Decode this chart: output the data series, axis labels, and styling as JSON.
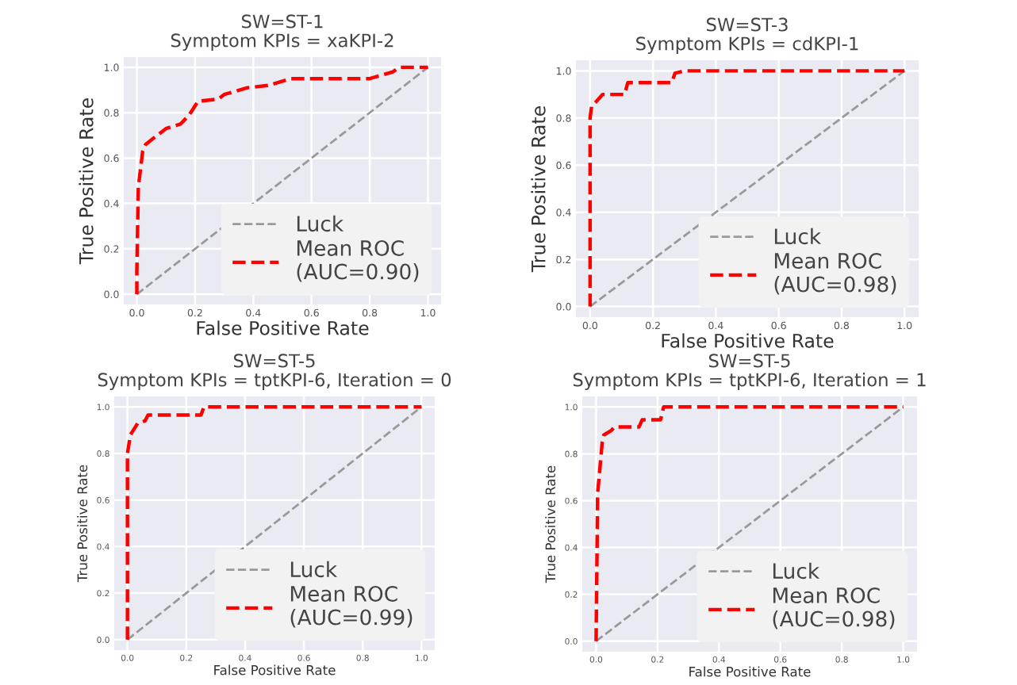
{
  "chart_data": [
    {
      "type": "line",
      "title": "SW=ST-1",
      "subtitle": "Symptom KPIs = xaKPI-2",
      "xlabel": "False Positive Rate",
      "ylabel": "True Positive Rate",
      "xlim": [
        -0.045,
        1.045
      ],
      "ylim": [
        -0.045,
        1.045
      ],
      "xticks": [
        {
          "value": 0,
          "label": "0.0"
        },
        {
          "value": 0.2,
          "label": "0.2"
        },
        {
          "value": 0.4,
          "label": "0.4"
        },
        {
          "value": 0.6,
          "label": "0.6"
        },
        {
          "value": 0.8,
          "label": "0.8"
        },
        {
          "value": 1,
          "label": "1.0"
        }
      ],
      "yticks": [
        {
          "value": 0,
          "label": "0.0"
        },
        {
          "value": 0.2,
          "label": "0.2"
        },
        {
          "value": 0.4,
          "label": "0.4"
        },
        {
          "value": 0.6,
          "label": "0.6"
        },
        {
          "value": 0.8,
          "label": "0.8"
        },
        {
          "value": 1,
          "label": "1.0"
        }
      ],
      "grid": true,
      "legend": "bottom right",
      "line_style": "dashed",
      "series": [
        {
          "name": "Luck",
          "color": "#999999",
          "x": [
            0,
            1
          ],
          "values": [
            0,
            1
          ]
        },
        {
          "name": "Mean ROC\n(AUC=0.90)",
          "color": "#ff0000",
          "x": [
            0,
            0,
            0.005,
            0.02,
            0.03,
            0.06,
            0.1,
            0.15,
            0.18,
            0.21,
            0.28,
            0.3,
            0.38,
            0.45,
            0.53,
            0.6,
            0.8,
            0.88,
            0.9,
            1
          ],
          "values": [
            0,
            0.1,
            0.47,
            0.63,
            0.66,
            0.69,
            0.73,
            0.75,
            0.79,
            0.85,
            0.86,
            0.88,
            0.91,
            0.92,
            0.95,
            0.95,
            0.95,
            0.98,
            1,
            1
          ]
        }
      ]
    },
    {
      "type": "line",
      "title": "SW=ST-3",
      "subtitle": "Symptom KPIs = cdKPI-1",
      "xlabel": "False Positive Rate",
      "ylabel": "True Positive Rate",
      "xlim": [
        -0.045,
        1.045
      ],
      "ylim": [
        -0.045,
        1.045
      ],
      "xticks": [
        {
          "value": 0,
          "label": "0.0"
        },
        {
          "value": 0.2,
          "label": "0.2"
        },
        {
          "value": 0.4,
          "label": "0.4"
        },
        {
          "value": 0.6,
          "label": "0.6"
        },
        {
          "value": 0.8,
          "label": "0.8"
        },
        {
          "value": 1,
          "label": "1.0"
        }
      ],
      "yticks": [
        {
          "value": 0,
          "label": "0.0"
        },
        {
          "value": 0.2,
          "label": "0.2"
        },
        {
          "value": 0.4,
          "label": "0.4"
        },
        {
          "value": 0.6,
          "label": "0.6"
        },
        {
          "value": 0.8,
          "label": "0.8"
        },
        {
          "value": 1,
          "label": "1.0"
        }
      ],
      "grid": true,
      "legend": "bottom right",
      "line_style": "dashed",
      "series": [
        {
          "name": "Luck",
          "color": "#999999",
          "x": [
            0,
            1
          ],
          "values": [
            0,
            1
          ]
        },
        {
          "name": "Mean ROC\n(AUC=0.98)",
          "color": "#ff0000",
          "x": [
            0,
            0,
            0.005,
            0.02,
            0.04,
            0.11,
            0.12,
            0.26,
            0.27,
            0.3,
            1
          ],
          "values": [
            0,
            0.8,
            0.85,
            0.87,
            0.9,
            0.9,
            0.95,
            0.95,
            0.99,
            1,
            1
          ]
        }
      ]
    },
    {
      "type": "line",
      "title": "SW=ST-5",
      "subtitle": "Symptom KPIs = tptKPI-6, Iteration = 0",
      "xlabel": "False Positive Rate",
      "ylabel": "True Positive Rate",
      "xlim": [
        -0.045,
        1.045
      ],
      "ylim": [
        -0.045,
        1.045
      ],
      "xticks": [
        {
          "value": 0,
          "label": "0.0"
        },
        {
          "value": 0.2,
          "label": "0.2"
        },
        {
          "value": 0.4,
          "label": "0.4"
        },
        {
          "value": 0.6,
          "label": "0.6"
        },
        {
          "value": 0.8,
          "label": "0.8"
        },
        {
          "value": 1,
          "label": "1.0"
        }
      ],
      "yticks": [
        {
          "value": 0,
          "label": "0.0"
        },
        {
          "value": 0.2,
          "label": "0.2"
        },
        {
          "value": 0.4,
          "label": "0.4"
        },
        {
          "value": 0.6,
          "label": "0.6"
        },
        {
          "value": 0.8,
          "label": "0.8"
        },
        {
          "value": 1,
          "label": "1.0"
        }
      ],
      "grid": true,
      "legend": "bottom right",
      "line_style": "dashed",
      "series": [
        {
          "name": "Luck",
          "color": "#999999",
          "x": [
            0,
            1
          ],
          "values": [
            0,
            1
          ]
        },
        {
          "name": "Mean ROC\n(AUC=0.99)",
          "color": "#ff0000",
          "x": [
            0,
            0,
            0.01,
            0.02,
            0.035,
            0.06,
            0.07,
            0.25,
            0.26,
            1
          ],
          "values": [
            0,
            0.8,
            0.88,
            0.9,
            0.93,
            0.94,
            0.965,
            0.965,
            1,
            1
          ]
        }
      ]
    },
    {
      "type": "line",
      "title": "SW=ST-5",
      "subtitle": "Symptom KPIs = tptKPI-6, Iteration = 1",
      "xlabel": "False Positive Rate",
      "ylabel": "True Positive Rate",
      "xlim": [
        -0.045,
        1.045
      ],
      "ylim": [
        -0.045,
        1.045
      ],
      "xticks": [
        {
          "value": 0,
          "label": "0.0"
        },
        {
          "value": 0.2,
          "label": "0.2"
        },
        {
          "value": 0.4,
          "label": "0.4"
        },
        {
          "value": 0.6,
          "label": "0.6"
        },
        {
          "value": 0.8,
          "label": "0.8"
        },
        {
          "value": 1,
          "label": "1.0"
        }
      ],
      "yticks": [
        {
          "value": 0,
          "label": "0.0"
        },
        {
          "value": 0.2,
          "label": "0.2"
        },
        {
          "value": 0.4,
          "label": "0.4"
        },
        {
          "value": 0.6,
          "label": "0.6"
        },
        {
          "value": 0.8,
          "label": "0.8"
        },
        {
          "value": 1,
          "label": "1.0"
        }
      ],
      "grid": true,
      "legend": "bottom right",
      "line_style": "dashed",
      "series": [
        {
          "name": "Luck",
          "color": "#999999",
          "x": [
            0,
            1
          ],
          "values": [
            0,
            1
          ]
        },
        {
          "name": "Mean ROC\n(AUC=0.98)",
          "color": "#ff0000",
          "x": [
            0,
            0.005,
            0.02,
            0.025,
            0.05,
            0.06,
            0.14,
            0.15,
            0.21,
            0.22,
            1
          ],
          "values": [
            0,
            0.63,
            0.85,
            0.88,
            0.9,
            0.915,
            0.915,
            0.945,
            0.945,
            1,
            1
          ]
        }
      ]
    }
  ]
}
